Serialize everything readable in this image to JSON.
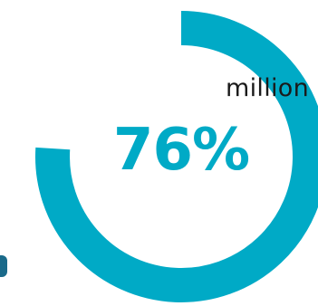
{
  "header": {
    "word": "million"
  },
  "chart_data": {
    "type": "pie",
    "style": "donut",
    "values": [
      76,
      24
    ],
    "value_label": "76%",
    "colors": {
      "filled": "#00aac6",
      "remainder": "#ffffff",
      "edge_accent": "#1a6a8a"
    }
  }
}
